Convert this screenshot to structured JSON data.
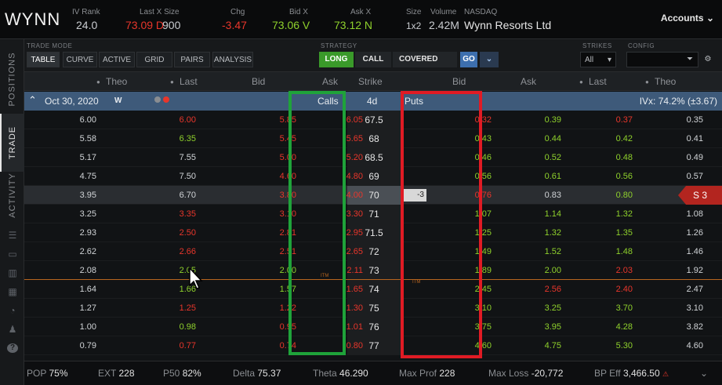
{
  "quote": {
    "symbol": "WYNN",
    "iv_rank_label": "IV Rank",
    "iv_rank": "24.0",
    "lastx_label": "Last X Size",
    "lastx": "73.09 D",
    "lastx_size": "900",
    "chg_label": "Chg",
    "chg": "-3.47",
    "bidx_label": "Bid X",
    "bidx": "73.06 V",
    "askx_label": "Ask X",
    "askx": "73.12 N",
    "size_label": "Size",
    "size": "1x2",
    "volume_label": "Volume",
    "volume": "2.42M",
    "exchange": "NASDAQ",
    "company": "Wynn Resorts Ltd",
    "accounts": "Accounts"
  },
  "sidebar": {
    "positions": "POSITIONS",
    "trade": "TRADE",
    "activity": "ACTIVITY"
  },
  "modebar": {
    "trade_mode_label": "TRADE MODE",
    "tabs": [
      "TABLE",
      "CURVE",
      "ACTIVE",
      "GRID",
      "PAIRS",
      "ANALYSIS"
    ],
    "strategy_label": "STRATEGY",
    "long": "LONG",
    "call": "CALL",
    "covered": "COVERED",
    "go": "GO",
    "strikes_label": "STRIKES",
    "strikes_value": "All",
    "config_label": "CONFIG"
  },
  "headers": {
    "theo": "Theo",
    "last": "Last",
    "bid": "Bid",
    "ask": "Ask",
    "strike": "Strike",
    "put_bid": "Bid",
    "put_ask": "Ask",
    "put_last": "Last",
    "put_theo": "Theo"
  },
  "expiry": {
    "date": "Oct 30, 2020",
    "week": "W",
    "calls": "Calls",
    "dte": "4d",
    "puts": "Puts",
    "ivx": "IVx: 74.2% (±3.67)"
  },
  "rows": [
    {
      "ct": "6.00",
      "cl": "6.00",
      "cb": "5.85",
      "ca": "6.05",
      "k": "67.5",
      "pb": "0.32",
      "pa": "0.39",
      "pl": "0.37",
      "pt": "0.35",
      "clc": "red",
      "cbc": "red",
      "cac": "red",
      "pbc": "red",
      "pac": "green",
      "plc": "red"
    },
    {
      "ct": "5.58",
      "cl": "6.35",
      "cb": "5.45",
      "ca": "5.65",
      "k": "68",
      "pb": "0.43",
      "pa": "0.44",
      "pl": "0.42",
      "pt": "0.41",
      "clc": "green",
      "cbc": "red",
      "cac": "red",
      "pbc": "green",
      "pac": "green",
      "plc": "green"
    },
    {
      "ct": "5.17",
      "cl": "7.55",
      "cb": "5.00",
      "ca": "5.20",
      "k": "68.5",
      "pb": "0.46",
      "pa": "0.52",
      "pl": "0.48",
      "pt": "0.49",
      "clc": "white",
      "cbc": "red",
      "cac": "red",
      "pbc": "green",
      "pac": "green",
      "plc": "green"
    },
    {
      "ct": "4.75",
      "cl": "7.50",
      "cb": "4.60",
      "ca": "4.80",
      "k": "69",
      "pb": "0.56",
      "pa": "0.61",
      "pl": "0.56",
      "pt": "0.57",
      "clc": "white",
      "cbc": "red",
      "cac": "red",
      "pbc": "green",
      "pac": "green",
      "plc": "green"
    },
    {
      "ct": "3.95",
      "cl": "6.70",
      "cb": "3.80",
      "ca": "4.00",
      "k": "70",
      "pb": "0.76",
      "pa": "0.83",
      "pl": "0.80",
      "pt": "0.79",
      "clc": "white",
      "cbc": "red",
      "cac": "red",
      "pbc": "red",
      "pac": "white",
      "plc": "green",
      "qty": "-3",
      "pos": "S 3"
    },
    {
      "ct": "3.25",
      "cl": "3.35",
      "cb": "3.10",
      "ca": "3.30",
      "k": "71",
      "pb": "1.07",
      "pa": "1.14",
      "pl": "1.32",
      "pt": "1.08",
      "clc": "red",
      "cbc": "red",
      "cac": "red",
      "pbc": "green",
      "pac": "green",
      "plc": "green"
    },
    {
      "ct": "2.93",
      "cl": "2.50",
      "cb": "2.81",
      "ca": "2.95",
      "k": "71.5",
      "pb": "1.25",
      "pa": "1.32",
      "pl": "1.35",
      "pt": "1.26",
      "clc": "red",
      "cbc": "red",
      "cac": "red",
      "pbc": "green",
      "pac": "green",
      "plc": "green"
    },
    {
      "ct": "2.62",
      "cl": "2.66",
      "cb": "2.51",
      "ca": "2.65",
      "k": "72",
      "pb": "1.49",
      "pa": "1.52",
      "pl": "1.48",
      "pt": "1.46",
      "clc": "red",
      "cbc": "red",
      "cac": "red",
      "pbc": "green",
      "pac": "green",
      "plc": "green"
    },
    {
      "ct": "2.08",
      "cl": "2.05",
      "cb": "2.00",
      "ca": "2.11",
      "k": "73",
      "pb": "1.89",
      "pa": "2.00",
      "pl": "2.03",
      "pt": "1.92",
      "clc": "green",
      "cbc": "green",
      "cac": "red",
      "pbc": "green",
      "pac": "green",
      "plc": "red"
    },
    {
      "ct": "1.64",
      "cl": "1.66",
      "cb": "1.57",
      "ca": "1.65",
      "k": "74",
      "pb": "2.45",
      "pa": "2.56",
      "pl": "2.40",
      "pt": "2.47",
      "clc": "green",
      "cbc": "green",
      "cac": "red",
      "pbc": "green",
      "pac": "red",
      "plc": "red"
    },
    {
      "ct": "1.27",
      "cl": "1.25",
      "cb": "1.22",
      "ca": "1.30",
      "k": "75",
      "pb": "3.10",
      "pa": "3.25",
      "pl": "3.70",
      "pt": "3.10",
      "clc": "red",
      "cbc": "red",
      "cac": "red",
      "pbc": "green",
      "pac": "green",
      "plc": "green"
    },
    {
      "ct": "1.00",
      "cl": "0.98",
      "cb": "0.95",
      "ca": "1.01",
      "k": "76",
      "pb": "3.75",
      "pa": "3.95",
      "pl": "4.28",
      "pt": "3.82",
      "clc": "green",
      "cbc": "red",
      "cac": "red",
      "pbc": "green",
      "pac": "green",
      "plc": "green"
    },
    {
      "ct": "0.79",
      "cl": "0.77",
      "cb": "0.74",
      "ca": "0.80",
      "k": "77",
      "pb": "4.60",
      "pa": "4.75",
      "pl": "5.30",
      "pt": "4.60",
      "clc": "red",
      "cbc": "red",
      "cac": "red",
      "pbc": "green",
      "pac": "green",
      "plc": "green"
    }
  ],
  "itm_label": "ITM",
  "footer": {
    "pop_label": "POP",
    "pop": "75%",
    "ext_label": "EXT",
    "ext": "228",
    "p50_label": "P50",
    "p50": "82%",
    "delta_label": "Delta",
    "delta": "75.37",
    "theta_label": "Theta",
    "theta": "46.290",
    "maxprof_label": "Max Prof",
    "maxprof": "228",
    "maxloss_label": "Max Loss",
    "maxloss": "-20,772",
    "bpeff_label": "BP Eff",
    "bpeff": "3,466.50"
  },
  "colors": {
    "red": "#e8362b",
    "green": "#8fd12c",
    "highlight_green": "#1fa33a",
    "highlight_red": "#e01b24",
    "long_btn": "#3a9a2a",
    "go_btn": "#3d6fae"
  }
}
